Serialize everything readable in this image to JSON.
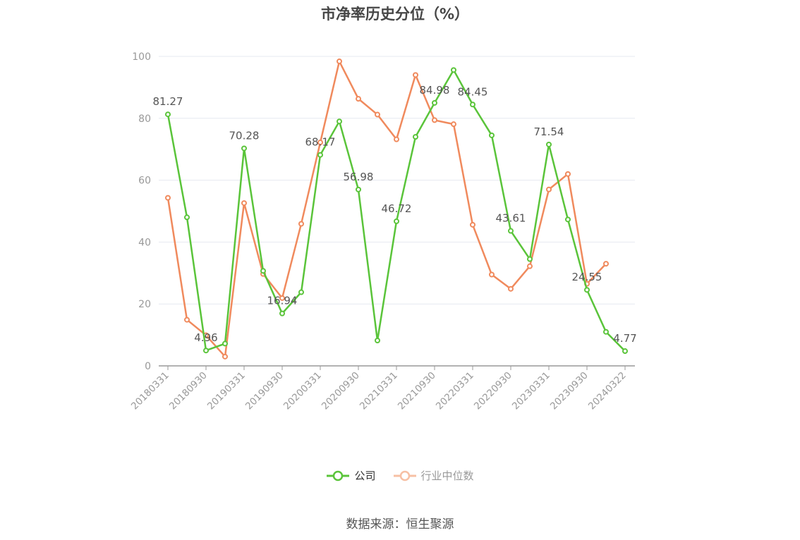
{
  "title": "市净率历史分位（%）",
  "source": "数据来源：恒生聚源",
  "colors": {
    "company": "#5ac43a",
    "industry": "#f08a5d",
    "grid": "#e6e9f0",
    "axis": "#999999"
  },
  "chart_data": {
    "type": "line",
    "title": "市净率历史分位（%）",
    "ylim": [
      0,
      100
    ],
    "yticks": [
      0,
      20,
      40,
      60,
      80,
      100
    ],
    "grid": true,
    "legend": "bottom",
    "xtick_labels": [
      "20180331",
      "20180930",
      "20190331",
      "20190930",
      "20200331",
      "20200930",
      "20210331",
      "20210930",
      "20220331",
      "20220930",
      "20230331",
      "20230930",
      "20240322"
    ],
    "x": [
      "20180331",
      "20180630",
      "20180930",
      "20181231",
      "20190331",
      "20190630",
      "20190930",
      "20191231",
      "20200331",
      "20200630",
      "20200930",
      "20201231",
      "20210331",
      "20210630",
      "20210930",
      "20211231",
      "20220331",
      "20220630",
      "20220930",
      "20221231",
      "20230331",
      "20230630",
      "20230930",
      "20231231",
      "20240322"
    ],
    "series": [
      {
        "name": "公司",
        "values": [
          81.27,
          48.0,
          4.96,
          7.2,
          70.28,
          30.7,
          16.94,
          23.8,
          68.17,
          79.0,
          56.98,
          8.2,
          46.72,
          74.0,
          84.98,
          95.6,
          84.45,
          74.5,
          43.61,
          34.5,
          71.54,
          47.3,
          24.55,
          11.0,
          4.77
        ],
        "labels": [
          "81.27",
          "",
          "4.96",
          "",
          "70.28",
          "",
          "16.94",
          "",
          "68.17",
          "",
          "56.98",
          "",
          "46.72",
          "",
          "84.98",
          "",
          "84.45",
          "",
          "43.61",
          "",
          "71.54",
          "",
          "24.55",
          "",
          "4.77"
        ]
      },
      {
        "name": "行业中位数",
        "values": [
          54.3,
          14.9,
          9.9,
          3.0,
          52.6,
          29.7,
          21.9,
          45.9,
          72.2,
          98.4,
          86.3,
          81.2,
          73.2,
          94.0,
          79.4,
          78.1,
          45.6,
          29.5,
          24.9,
          32.2,
          57.0,
          62.0,
          26.5,
          33.0,
          null
        ]
      }
    ]
  }
}
